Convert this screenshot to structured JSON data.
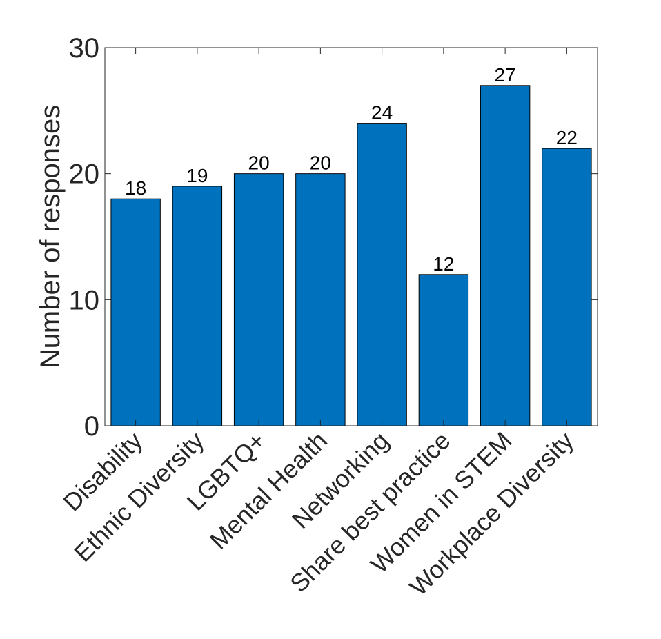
{
  "chart_data": {
    "type": "bar",
    "categories": [
      "Disability",
      "Ethnic Diversity",
      "LGBTQ+",
      "Mental Health",
      "Networking",
      "Share best practice",
      "Women in STEM",
      "Workplace Diversity"
    ],
    "values": [
      18,
      19,
      20,
      20,
      24,
      12,
      27,
      22
    ],
    "data_labels": [
      "18",
      "19",
      "20",
      "20",
      "24",
      "12",
      "27",
      "22"
    ],
    "title": "",
    "xlabel": "",
    "ylabel": "Number of responses",
    "ylim": [
      0,
      30
    ],
    "yticks": [
      0,
      10,
      20,
      30
    ],
    "ytick_labels": [
      "0",
      "10",
      "20",
      "30"
    ],
    "grid": false,
    "bar_color": "#0072BD",
    "bar_edge_color": "#000000",
    "axis_color": "#262626"
  }
}
